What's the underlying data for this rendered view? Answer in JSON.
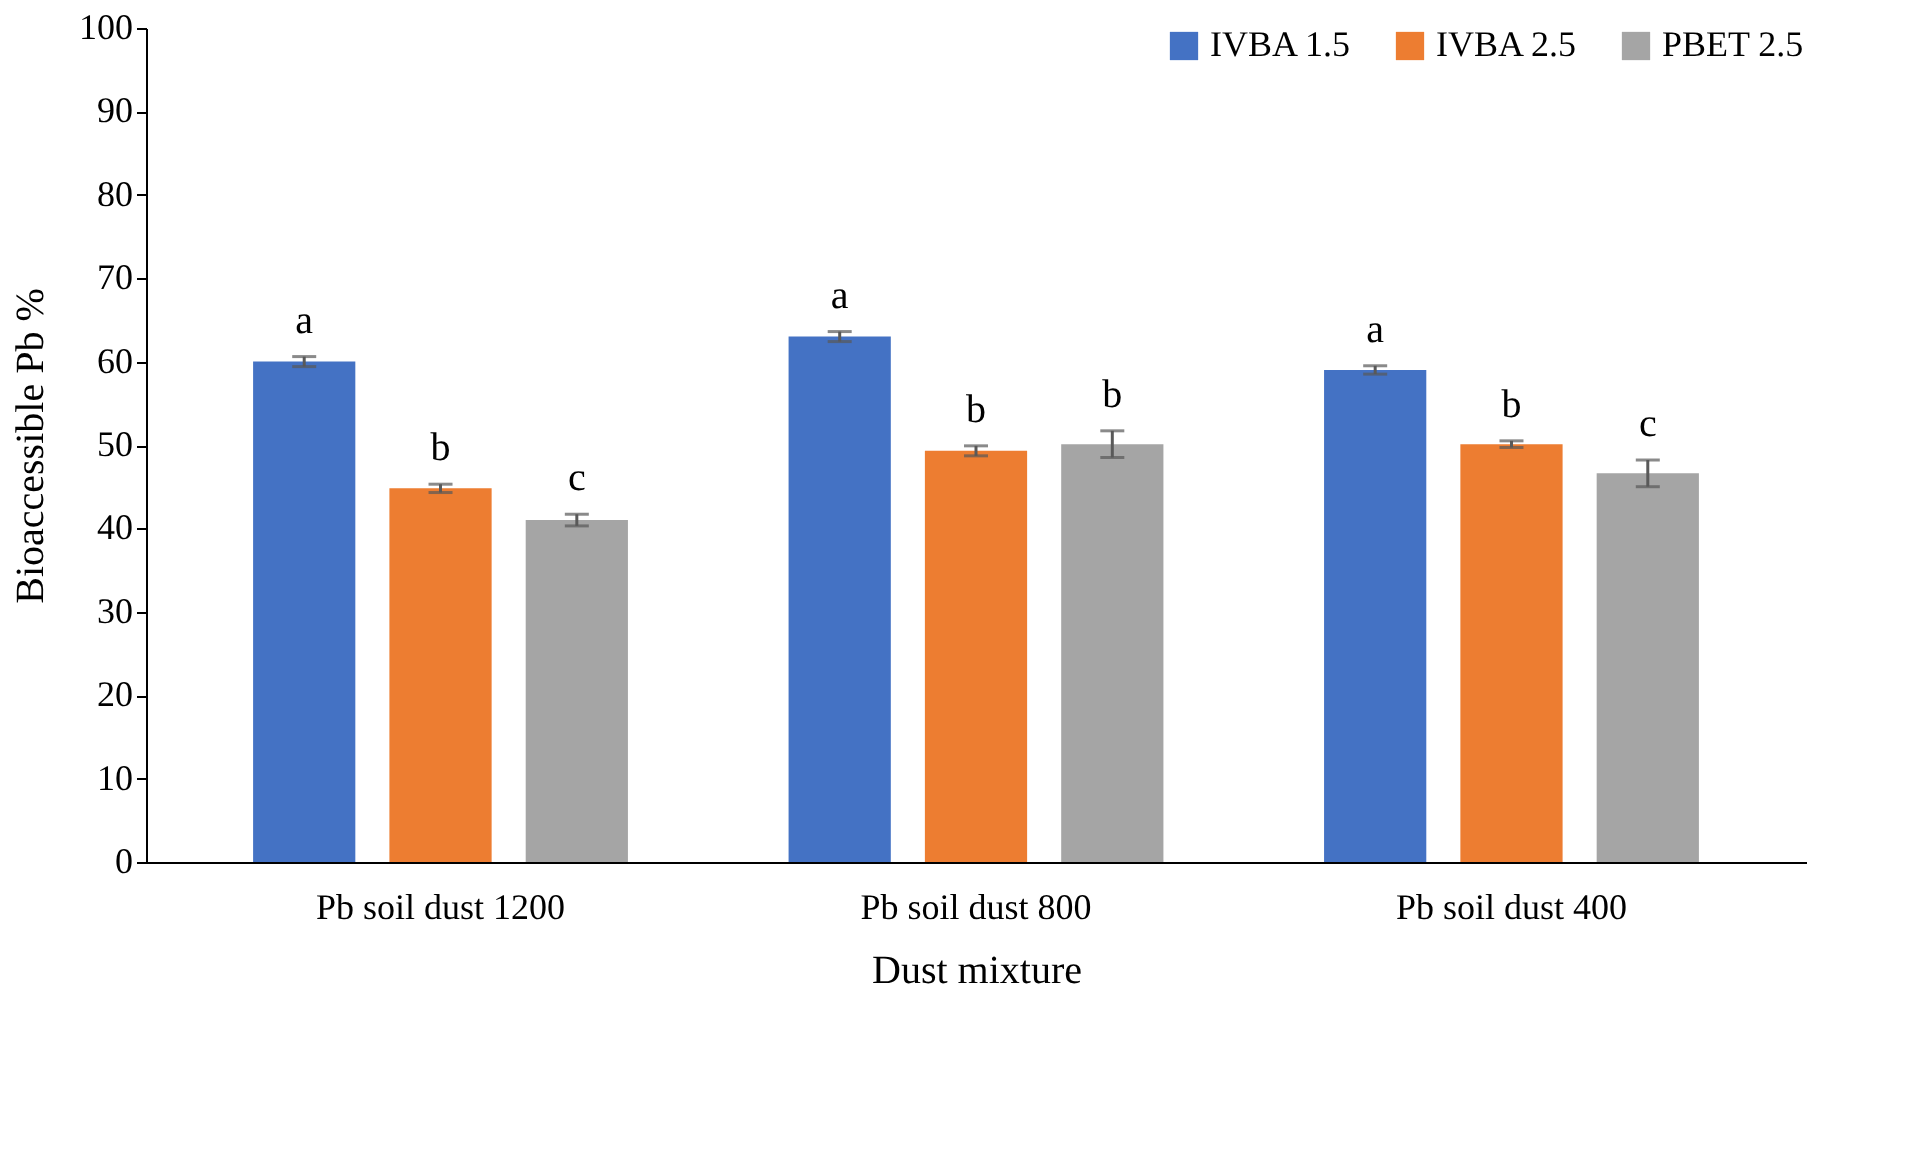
{
  "chart_data": {
    "type": "bar",
    "xlabel": "Dust mixture",
    "ylabel": "Bioaccessible Pb %",
    "categories": [
      "Pb soil dust 1200",
      "Pb soil dust 800",
      "Pb soil dust 400"
    ],
    "series": [
      {
        "name": "IVBA 1.5",
        "color": "#4472c4",
        "values": [
          60,
          63,
          59
        ],
        "errors": [
          0.6,
          0.6,
          0.5
        ],
        "value_labels": [
          "a",
          "a",
          "a"
        ]
      },
      {
        "name": "IVBA 2.5",
        "color": "#ed7d31",
        "values": [
          44.8,
          49.3,
          50.1
        ],
        "errors": [
          0.5,
          0.6,
          0.4
        ],
        "value_labels": [
          "b",
          "b",
          "b"
        ]
      },
      {
        "name": "PBET 2.5",
        "color": "#a5a5a5",
        "values": [
          41,
          50.1,
          46.6
        ],
        "errors": [
          0.7,
          1.6,
          1.6
        ],
        "value_labels": [
          "c",
          "b",
          "c"
        ]
      }
    ],
    "ylim": [
      0,
      100
    ],
    "yticks": [
      0,
      10,
      20,
      30,
      40,
      50,
      60,
      70,
      80,
      90,
      100
    ],
    "grid": false,
    "legend": "top right"
  }
}
